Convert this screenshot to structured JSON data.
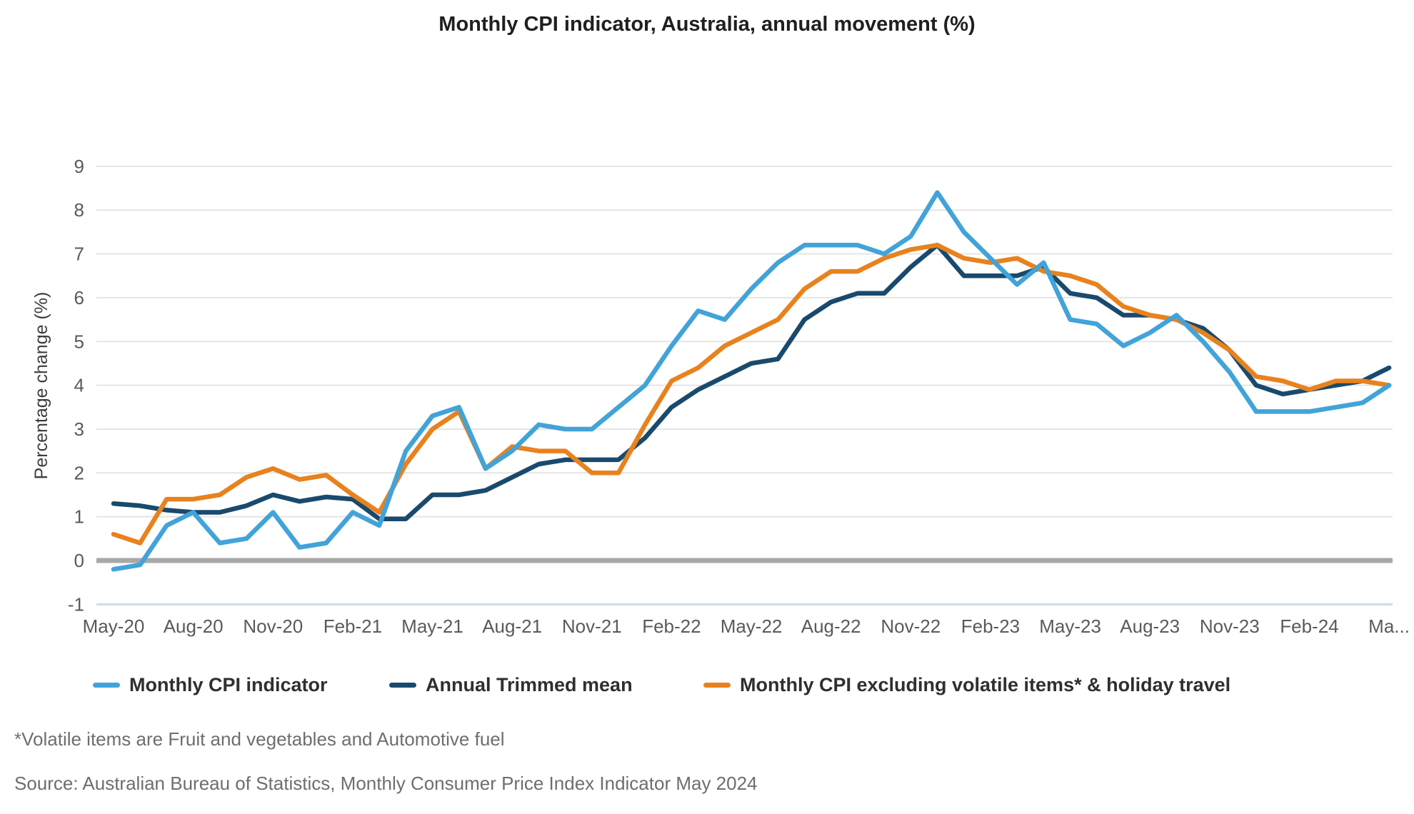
{
  "title": "Monthly CPI indicator, Australia, annual movement (%)",
  "y_axis": {
    "label": "Percentage change (%)",
    "ticks": [
      -1,
      0,
      1,
      2,
      3,
      4,
      5,
      6,
      7,
      8,
      9
    ]
  },
  "x_axis": {
    "tick_labels": [
      "May-20",
      "Aug-20",
      "Nov-20",
      "Feb-21",
      "May-21",
      "Aug-21",
      "Nov-21",
      "Feb-22",
      "May-22",
      "Aug-22",
      "Nov-22",
      "Feb-23",
      "May-23",
      "Aug-23",
      "Nov-23",
      "Feb-24",
      "Ma..."
    ],
    "tick_month_step": 3
  },
  "legend": {
    "items": [
      {
        "label": "Monthly CPI indicator",
        "color": "#42A3D9"
      },
      {
        "label": "Annual Trimmed mean",
        "color": "#194A6D"
      },
      {
        "label": "Monthly CPI excluding volatile items* & holiday travel",
        "color": "#E8821E"
      }
    ]
  },
  "footnote": "*Volatile items are Fruit and vegetables and Automotive fuel",
  "source": "Source: Australian Bureau of Statistics, Monthly Consumer Price Index Indicator May 2024",
  "chart_data": {
    "type": "line",
    "title": "Monthly CPI indicator, Australia, annual movement (%)",
    "xlabel": "",
    "ylabel": "Percentage change (%)",
    "ylim": [
      -1,
      9
    ],
    "grid": "horizontal",
    "legend_position": "bottom",
    "x": [
      "May-20",
      "Jun-20",
      "Jul-20",
      "Aug-20",
      "Sep-20",
      "Oct-20",
      "Nov-20",
      "Dec-20",
      "Jan-21",
      "Feb-21",
      "Mar-21",
      "Apr-21",
      "May-21",
      "Jun-21",
      "Jul-21",
      "Aug-21",
      "Sep-21",
      "Oct-21",
      "Nov-21",
      "Dec-21",
      "Jan-22",
      "Feb-22",
      "Mar-22",
      "Apr-22",
      "May-22",
      "Jun-22",
      "Jul-22",
      "Aug-22",
      "Sep-22",
      "Oct-22",
      "Nov-22",
      "Dec-22",
      "Jan-23",
      "Feb-23",
      "Mar-23",
      "Apr-23",
      "May-23",
      "Jun-23",
      "Jul-23",
      "Aug-23",
      "Sep-23",
      "Oct-23",
      "Nov-23",
      "Dec-23",
      "Jan-24",
      "Feb-24",
      "Mar-24",
      "Apr-24",
      "May-24"
    ],
    "series": [
      {
        "name": "Monthly CPI indicator",
        "color": "#42A3D9",
        "values": [
          -0.2,
          -0.1,
          0.8,
          1.1,
          0.4,
          0.5,
          1.1,
          0.3,
          0.4,
          1.1,
          0.8,
          2.5,
          3.3,
          3.5,
          2.1,
          2.5,
          3.1,
          3.0,
          3.0,
          3.5,
          4.0,
          4.9,
          5.7,
          5.5,
          6.2,
          6.8,
          7.2,
          7.2,
          7.2,
          7.0,
          7.4,
          8.4,
          7.5,
          6.9,
          6.3,
          6.8,
          5.5,
          5.4,
          4.9,
          5.2,
          5.6,
          5.0,
          4.3,
          3.4,
          3.4,
          3.4,
          3.5,
          3.6,
          4.0
        ]
      },
      {
        "name": "Annual Trimmed mean",
        "color": "#194A6D",
        "values": [
          1.3,
          1.25,
          1.15,
          1.1,
          1.1,
          1.25,
          1.5,
          1.35,
          1.45,
          1.4,
          0.95,
          0.95,
          1.5,
          1.5,
          1.6,
          1.9,
          2.2,
          2.3,
          2.3,
          2.3,
          2.8,
          3.5,
          3.9,
          4.2,
          4.5,
          4.6,
          5.5,
          5.9,
          6.1,
          6.1,
          6.7,
          7.2,
          6.5,
          6.5,
          6.5,
          6.7,
          6.1,
          6.0,
          5.6,
          5.6,
          5.5,
          5.3,
          4.8,
          4.0,
          3.8,
          3.9,
          4.0,
          4.1,
          4.4
        ]
      },
      {
        "name": "Monthly CPI excluding volatile items* & holiday travel",
        "color": "#E8821E",
        "values": [
          0.6,
          0.4,
          1.4,
          1.4,
          1.5,
          1.9,
          2.1,
          1.85,
          1.95,
          1.5,
          1.1,
          2.2,
          3.0,
          3.4,
          2.1,
          2.6,
          2.5,
          2.5,
          2.0,
          2.0,
          3.1,
          4.1,
          4.4,
          4.9,
          5.2,
          5.5,
          6.2,
          6.6,
          6.6,
          6.9,
          7.1,
          7.2,
          6.9,
          6.8,
          6.9,
          6.6,
          6.5,
          6.3,
          5.8,
          5.6,
          5.5,
          5.2,
          4.8,
          4.2,
          4.1,
          3.9,
          4.1,
          4.1,
          4.0
        ]
      }
    ]
  },
  "style": {
    "gridline_color": "#e5e5e5",
    "zero_line_color": "#a8a8a8",
    "minus_one_line_color": "#ccdaee",
    "tick_label_color": "#5a5a5a",
    "axis_title_color": "#3d3d3d"
  }
}
